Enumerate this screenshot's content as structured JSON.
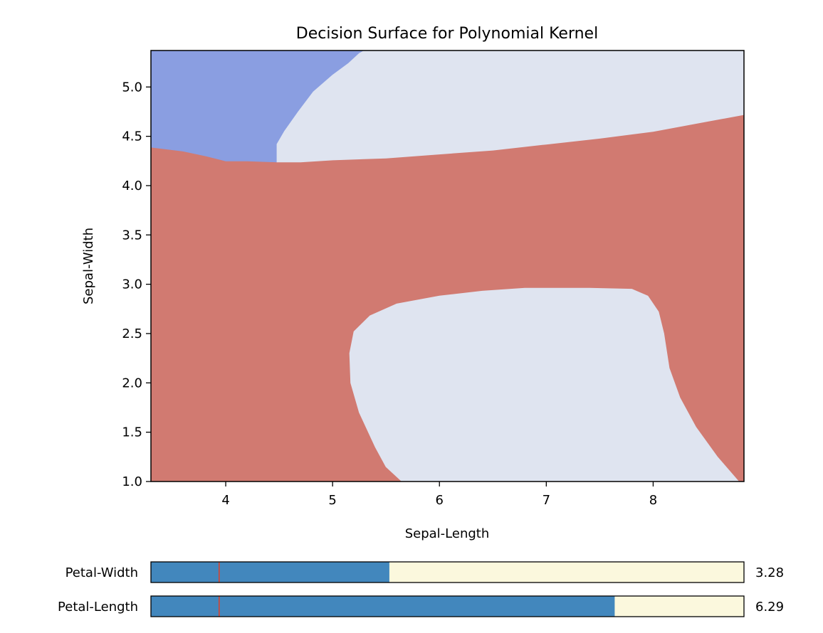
{
  "chart_data": {
    "type": "contour",
    "title": "Decision Surface for Polynomial Kernel",
    "xlabel": "Sepal-Length",
    "ylabel": "Sepal-Width",
    "xlim": [
      3.3,
      8.85
    ],
    "ylim": [
      1.0,
      5.37
    ],
    "xticks": [
      4,
      5,
      6,
      7,
      8
    ],
    "yticks": [
      1.0,
      1.5,
      2.0,
      2.5,
      3.0,
      3.5,
      4.0,
      4.5,
      5.0
    ],
    "grid": false,
    "regions": [
      {
        "class": "blue",
        "color": "#8a9ee1",
        "boundary": [
          [
            3.3,
            5.37
          ],
          [
            5.3,
            5.37
          ],
          [
            5.25,
            5.34
          ],
          [
            5.15,
            5.24
          ],
          [
            5.0,
            5.12
          ],
          [
            4.82,
            4.95
          ],
          [
            4.68,
            4.75
          ],
          [
            4.55,
            4.55
          ],
          [
            4.48,
            4.42
          ],
          [
            4.48,
            4.24
          ],
          [
            4.2,
            4.25
          ],
          [
            4.0,
            4.25
          ],
          [
            3.82,
            4.3
          ],
          [
            3.6,
            4.35
          ],
          [
            3.3,
            4.39
          ]
        ]
      },
      {
        "class": "light-top",
        "color": "#dfe4f0",
        "boundary": [
          [
            5.3,
            5.37
          ],
          [
            8.85,
            5.37
          ],
          [
            8.85,
            4.72
          ],
          [
            8.5,
            4.65
          ],
          [
            8.0,
            4.55
          ],
          [
            7.5,
            4.48
          ],
          [
            7.0,
            4.42
          ],
          [
            6.5,
            4.36
          ],
          [
            6.0,
            4.32
          ],
          [
            5.5,
            4.28
          ],
          [
            5.0,
            4.26
          ],
          [
            4.7,
            4.24
          ],
          [
            4.48,
            4.24
          ],
          [
            4.48,
            4.42
          ],
          [
            4.55,
            4.55
          ],
          [
            4.68,
            4.75
          ],
          [
            4.82,
            4.95
          ],
          [
            5.0,
            5.12
          ],
          [
            5.15,
            5.24
          ],
          [
            5.25,
            5.34
          ]
        ]
      },
      {
        "class": "light-bottom",
        "color": "#dfe4f0",
        "boundary": [
          [
            5.65,
            1.0
          ],
          [
            8.8,
            1.0
          ],
          [
            8.6,
            1.25
          ],
          [
            8.4,
            1.55
          ],
          [
            8.25,
            1.85
          ],
          [
            8.15,
            2.15
          ],
          [
            8.1,
            2.5
          ],
          [
            8.05,
            2.72
          ],
          [
            7.95,
            2.88
          ],
          [
            7.8,
            2.95
          ],
          [
            7.4,
            2.96
          ],
          [
            6.8,
            2.96
          ],
          [
            6.4,
            2.93
          ],
          [
            6.0,
            2.88
          ],
          [
            5.6,
            2.8
          ],
          [
            5.35,
            2.68
          ],
          [
            5.2,
            2.52
          ],
          [
            5.16,
            2.3
          ],
          [
            5.17,
            2.0
          ],
          [
            5.25,
            1.7
          ],
          [
            5.4,
            1.35
          ],
          [
            5.5,
            1.15
          ]
        ]
      }
    ],
    "background_region": {
      "class": "red",
      "color": "#d17a71"
    }
  },
  "sliders": [
    {
      "label": "Petal-Width",
      "value_text": "3.28",
      "fill_fraction": 0.402,
      "marker_fraction": 0.115,
      "fill_color": "#4287bd",
      "track_color": "#fbf8dd",
      "marker_color": "#d9432f"
    },
    {
      "label": "Petal-Length",
      "value_text": "6.29",
      "fill_fraction": 0.782,
      "marker_fraction": 0.115,
      "fill_color": "#4287bd",
      "track_color": "#fbf8dd",
      "marker_color": "#d9432f"
    }
  ]
}
